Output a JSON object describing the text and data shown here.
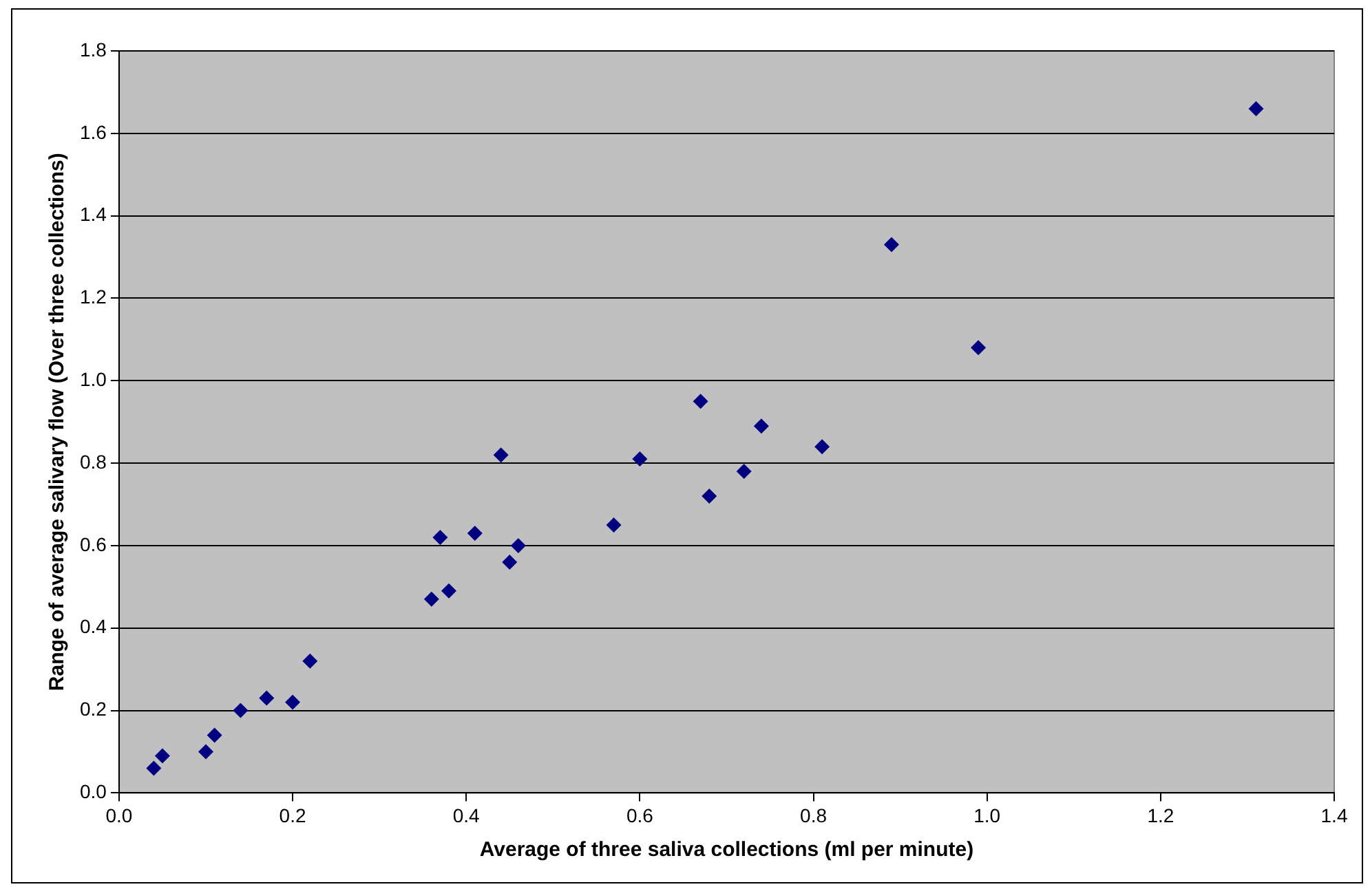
{
  "chart_data": {
    "type": "scatter",
    "xlabel": "Average of three saliva collections (ml per minute)",
    "ylabel": "Range of average salivary flow (Over three collections)",
    "x": [
      0.04,
      0.05,
      0.1,
      0.11,
      0.14,
      0.17,
      0.2,
      0.22,
      0.36,
      0.37,
      0.38,
      0.41,
      0.44,
      0.45,
      0.46,
      0.57,
      0.6,
      0.67,
      0.68,
      0.72,
      0.74,
      0.81,
      0.89,
      0.99,
      1.31
    ],
    "series": [
      {
        "color": "#000080",
        "values": [
          0.06,
          0.09,
          0.1,
          0.14,
          0.2,
          0.23,
          0.22,
          0.32,
          0.47,
          0.62,
          0.49,
          0.63,
          0.82,
          0.56,
          0.6,
          0.65,
          0.81,
          0.95,
          0.72,
          0.78,
          0.89,
          0.84,
          1.33,
          1.08,
          1.66
        ]
      }
    ],
    "xlim": [
      0,
      1.4
    ],
    "ylim": [
      0,
      1.8
    ],
    "xticks": [
      {
        "value": 0,
        "label": "0.0"
      },
      {
        "value": 0.2,
        "label": "0.2"
      },
      {
        "value": 0.4,
        "label": "0.4"
      },
      {
        "value": 0.6,
        "label": "0.6"
      },
      {
        "value": 0.8,
        "label": "0.8"
      },
      {
        "value": 1,
        "label": "1.0"
      },
      {
        "value": 1.2,
        "label": "1.2"
      },
      {
        "value": 1.4,
        "label": "1.4"
      }
    ],
    "yticks": [
      {
        "value": 0,
        "label": "0.0"
      },
      {
        "value": 0.2,
        "label": "0.2"
      },
      {
        "value": 0.4,
        "label": "0.4"
      },
      {
        "value": 0.6,
        "label": "0.6"
      },
      {
        "value": 0.8,
        "label": "0.8"
      },
      {
        "value": 1,
        "label": "1.0"
      },
      {
        "value": 1.2,
        "label": "1.2"
      },
      {
        "value": 1.4,
        "label": "1.4"
      },
      {
        "value": 1.6,
        "label": "1.6"
      },
      {
        "value": 1.8,
        "label": "1.8"
      }
    ],
    "grid": "y",
    "marker": "diamond",
    "legend": false
  }
}
